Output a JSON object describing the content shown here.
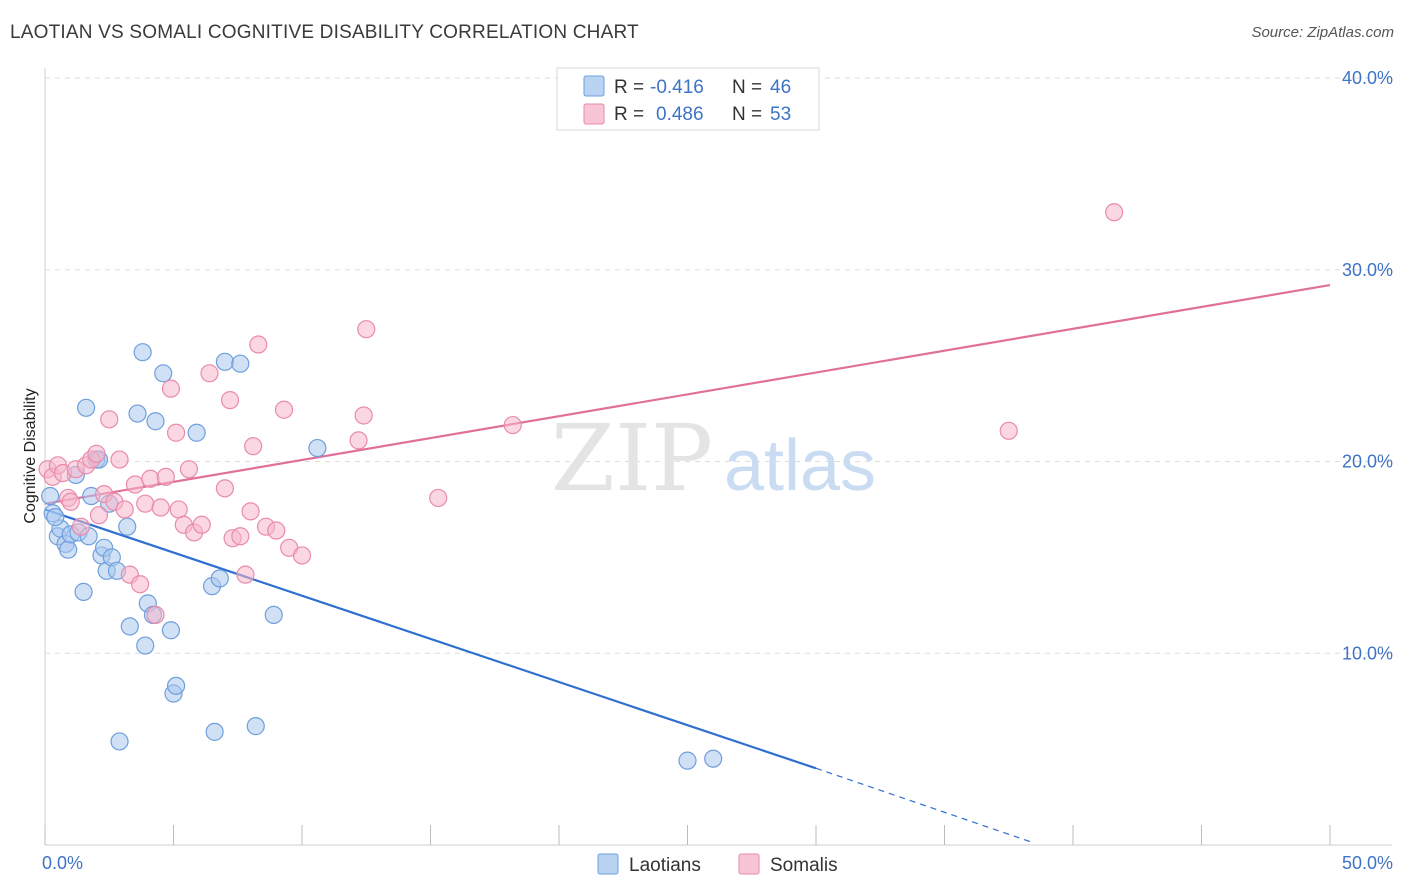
{
  "title": "LAOTIAN VS SOMALI COGNITIVE DISABILITY CORRELATION CHART",
  "source": "Source: ZipAtlas.com",
  "watermark": {
    "zip": "ZIP",
    "atlas": "atlas"
  },
  "chart_data": {
    "type": "scatter",
    "xlabel": "",
    "ylabel": "Cognitive Disability",
    "xlim": [
      0,
      50
    ],
    "ylim": [
      0,
      40
    ],
    "x_tick_labels": [
      {
        "value": 0,
        "label": "0.0%"
      },
      {
        "value": 50,
        "label": "50.0%"
      }
    ],
    "y_tick_labels": [
      {
        "value": 10,
        "label": "10.0%"
      },
      {
        "value": 20,
        "label": "20.0%"
      },
      {
        "value": 30,
        "label": "30.0%"
      },
      {
        "value": 40,
        "label": "40.0%"
      }
    ],
    "grid": true,
    "legend_position": "top-center",
    "stats_legend": [
      {
        "r_label": "R =",
        "r_value": "-0.416",
        "n_label": "N =",
        "n_value": "46",
        "color": "#aac8ef"
      },
      {
        "r_label": "R =",
        "r_value": "0.486",
        "n_label": "N =",
        "n_value": "53",
        "color": "#f5b6ca"
      }
    ],
    "series": [
      {
        "name": "Laotians",
        "color": "#aac8ef",
        "edge_color": "#6f9fdc",
        "trend_color": "#2f6fd0",
        "trend": {
          "x0": 0,
          "y0": 17.5,
          "x1": 30,
          "y1": 4.0,
          "dash_to_x": 38.5,
          "dash_to_y": 0.1
        },
        "points": [
          [
            0.2,
            18.2
          ],
          [
            0.3,
            17.3
          ],
          [
            0.5,
            16.1
          ],
          [
            0.6,
            16.5
          ],
          [
            0.8,
            15.7
          ],
          [
            0.9,
            15.4
          ],
          [
            1.0,
            16.2
          ],
          [
            1.2,
            19.3
          ],
          [
            1.3,
            16.3
          ],
          [
            1.5,
            13.2
          ],
          [
            1.6,
            22.8
          ],
          [
            1.8,
            18.2
          ],
          [
            2.0,
            20.1
          ],
          [
            2.2,
            15.1
          ],
          [
            2.3,
            15.5
          ],
          [
            2.4,
            14.3
          ],
          [
            2.5,
            17.8
          ],
          [
            2.6,
            15.0
          ],
          [
            2.8,
            14.3
          ],
          [
            2.9,
            5.4
          ],
          [
            3.2,
            16.6
          ],
          [
            3.3,
            11.4
          ],
          [
            3.6,
            22.5
          ],
          [
            3.8,
            25.7
          ],
          [
            3.9,
            10.4
          ],
          [
            4.0,
            12.6
          ],
          [
            4.2,
            12.0
          ],
          [
            4.3,
            22.1
          ],
          [
            4.6,
            24.6
          ],
          [
            4.9,
            11.2
          ],
          [
            5.0,
            7.9
          ],
          [
            5.1,
            8.3
          ],
          [
            5.9,
            21.5
          ],
          [
            6.5,
            13.5
          ],
          [
            6.6,
            5.9
          ],
          [
            6.8,
            13.9
          ],
          [
            7.0,
            25.2
          ],
          [
            7.6,
            25.1
          ],
          [
            8.2,
            6.2
          ],
          [
            8.9,
            12.0
          ],
          [
            10.6,
            20.7
          ],
          [
            25.0,
            4.4
          ],
          [
            26.0,
            4.5
          ],
          [
            0.4,
            17.1
          ],
          [
            1.7,
            16.1
          ],
          [
            2.1,
            20.1
          ]
        ]
      },
      {
        "name": "Somalis",
        "color": "#f5b6ca",
        "edge_color": "#e98bab",
        "trend_color": "#e0709a",
        "trend": {
          "x0": 0,
          "y0": 17.8,
          "x1": 50,
          "y1": 29.2
        },
        "points": [
          [
            0.1,
            19.6
          ],
          [
            0.3,
            19.2
          ],
          [
            0.5,
            19.8
          ],
          [
            0.7,
            19.4
          ],
          [
            0.9,
            18.1
          ],
          [
            1.0,
            17.9
          ],
          [
            1.2,
            19.6
          ],
          [
            1.4,
            16.6
          ],
          [
            1.6,
            19.8
          ],
          [
            1.8,
            20.1
          ],
          [
            2.0,
            20.4
          ],
          [
            2.1,
            17.2
          ],
          [
            2.3,
            18.3
          ],
          [
            2.5,
            22.2
          ],
          [
            2.7,
            17.9
          ],
          [
            2.9,
            20.1
          ],
          [
            3.1,
            17.5
          ],
          [
            3.3,
            14.1
          ],
          [
            3.5,
            18.8
          ],
          [
            3.7,
            13.6
          ],
          [
            3.9,
            17.8
          ],
          [
            4.1,
            19.1
          ],
          [
            4.3,
            12.0
          ],
          [
            4.5,
            17.6
          ],
          [
            4.7,
            19.2
          ],
          [
            4.9,
            23.8
          ],
          [
            5.1,
            21.5
          ],
          [
            5.2,
            17.5
          ],
          [
            5.4,
            16.7
          ],
          [
            5.6,
            19.6
          ],
          [
            5.8,
            16.3
          ],
          [
            6.1,
            16.7
          ],
          [
            6.4,
            24.6
          ],
          [
            7.0,
            18.6
          ],
          [
            7.2,
            23.2
          ],
          [
            7.3,
            16.0
          ],
          [
            7.6,
            16.1
          ],
          [
            7.8,
            14.1
          ],
          [
            8.0,
            17.4
          ],
          [
            8.1,
            20.8
          ],
          [
            8.3,
            26.1
          ],
          [
            8.6,
            16.6
          ],
          [
            9.0,
            16.4
          ],
          [
            9.3,
            22.7
          ],
          [
            9.5,
            15.5
          ],
          [
            10.0,
            15.1
          ],
          [
            12.2,
            21.1
          ],
          [
            12.4,
            22.4
          ],
          [
            12.5,
            26.9
          ],
          [
            15.3,
            18.1
          ],
          [
            18.2,
            21.9
          ],
          [
            37.5,
            21.6
          ],
          [
            41.6,
            33.0
          ]
        ]
      }
    ]
  }
}
